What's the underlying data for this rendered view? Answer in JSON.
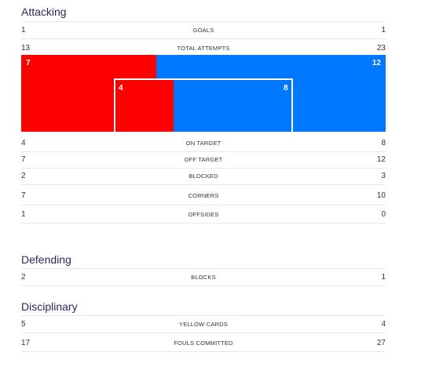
{
  "sections": {
    "attacking": "Attacking",
    "defending": "Defending",
    "disciplinary": "Disciplinary"
  },
  "colors": {
    "home": "#ff0000",
    "away": "#0077ff"
  },
  "attacking": {
    "goals": {
      "label": "GOALS",
      "home": "1",
      "away": "1"
    },
    "total_attempts": {
      "label": "TOTAL ATTEMPTS",
      "home": "13",
      "away": "23"
    },
    "on_target": {
      "label": "ON TARGET",
      "home": "4",
      "away": "8"
    },
    "off_target": {
      "label": "OFF TARGET",
      "home": "7",
      "away": "12"
    },
    "blocked": {
      "label": "BLOCKED",
      "home": "2",
      "away": "3"
    },
    "corners": {
      "label": "CORNERS",
      "home": "7",
      "away": "10"
    },
    "offsides": {
      "label": "OFFSIDES",
      "home": "1",
      "away": "0"
    }
  },
  "attempts_viz": {
    "off_target_home": "7",
    "off_target_away": "12",
    "on_target_home": "4",
    "on_target_away": "8"
  },
  "defending": {
    "blocks": {
      "label": "BLOCKS",
      "home": "2",
      "away": "1"
    }
  },
  "disciplinary": {
    "yellow_cards": {
      "label": "YELLOW CARDS",
      "home": "5",
      "away": "4"
    },
    "fouls_committed": {
      "label": "FOULS COMMITTED",
      "home": "17",
      "away": "27"
    }
  }
}
